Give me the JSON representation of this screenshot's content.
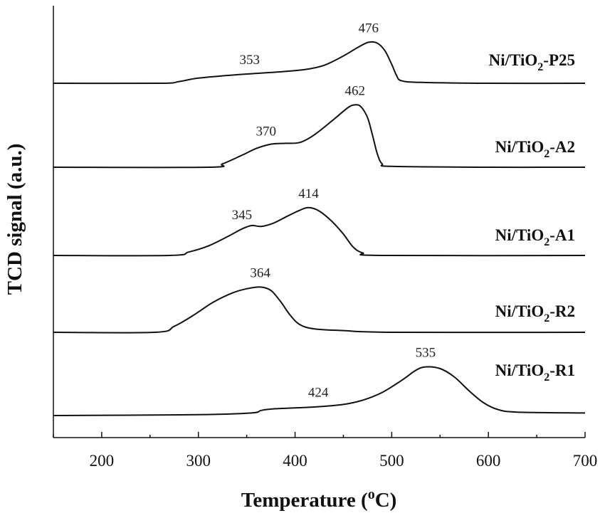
{
  "chart_data": {
    "type": "line",
    "xlabel": "Temperature (",
    "xlabel_sup": "o",
    "xlabel_end": "C)",
    "ylabel": "TCD signal (a.u.)",
    "xlim": [
      150,
      700
    ],
    "x_ticks": [
      200,
      300,
      400,
      500,
      600,
      700
    ],
    "y_ticks_shown": false,
    "series": [
      {
        "name_pre": "Ni/TiO",
        "name_sub": "2",
        "name_post": "-P25",
        "points": [
          [
            150,
            0.0
          ],
          [
            260,
            0.0
          ],
          [
            280,
            0.02
          ],
          [
            300,
            0.06
          ],
          [
            340,
            0.1
          ],
          [
            380,
            0.13
          ],
          [
            410,
            0.16
          ],
          [
            430,
            0.21
          ],
          [
            450,
            0.32
          ],
          [
            465,
            0.42
          ],
          [
            476,
            0.48
          ],
          [
            485,
            0.47
          ],
          [
            493,
            0.38
          ],
          [
            500,
            0.22
          ],
          [
            505,
            0.09
          ],
          [
            510,
            0.03
          ],
          [
            530,
            0.01
          ],
          [
            600,
            0.0
          ],
          [
            700,
            0.0
          ]
        ],
        "peaks": [
          {
            "x": 353,
            "label": "353"
          },
          {
            "x": 476,
            "label": "476"
          }
        ]
      },
      {
        "name_pre": "Ni/TiO",
        "name_sub": "2",
        "name_post": "-A2",
        "points": [
          [
            150,
            0.0
          ],
          [
            310,
            0.0
          ],
          [
            325,
            0.04
          ],
          [
            345,
            0.14
          ],
          [
            360,
            0.22
          ],
          [
            375,
            0.27
          ],
          [
            390,
            0.28
          ],
          [
            405,
            0.29
          ],
          [
            420,
            0.38
          ],
          [
            440,
            0.56
          ],
          [
            455,
            0.7
          ],
          [
            462,
            0.73
          ],
          [
            468,
            0.71
          ],
          [
            475,
            0.58
          ],
          [
            480,
            0.38
          ],
          [
            485,
            0.16
          ],
          [
            490,
            0.04
          ],
          [
            500,
            0.01
          ],
          [
            600,
            0.0
          ],
          [
            700,
            0.0
          ]
        ],
        "peaks": [
          {
            "x": 370,
            "label": "370"
          },
          {
            "x": 462,
            "label": "462"
          }
        ]
      },
      {
        "name_pre": "Ni/TiO",
        "name_sub": "2",
        "name_post": "-A1",
        "points": [
          [
            150,
            0.0
          ],
          [
            270,
            0.0
          ],
          [
            290,
            0.04
          ],
          [
            310,
            0.11
          ],
          [
            330,
            0.22
          ],
          [
            345,
            0.31
          ],
          [
            355,
            0.35
          ],
          [
            365,
            0.34
          ],
          [
            378,
            0.38
          ],
          [
            392,
            0.46
          ],
          [
            405,
            0.53
          ],
          [
            414,
            0.56
          ],
          [
            425,
            0.52
          ],
          [
            438,
            0.4
          ],
          [
            450,
            0.25
          ],
          [
            460,
            0.1
          ],
          [
            470,
            0.03
          ],
          [
            490,
            0.0
          ],
          [
            700,
            0.0
          ]
        ],
        "peaks": [
          {
            "x": 345,
            "label": "345"
          },
          {
            "x": 414,
            "label": "414"
          }
        ]
      },
      {
        "name_pre": "Ni/TiO",
        "name_sub": "2",
        "name_post": "-R2",
        "points": [
          [
            150,
            0.0
          ],
          [
            255,
            0.0
          ],
          [
            275,
            0.07
          ],
          [
            295,
            0.2
          ],
          [
            315,
            0.35
          ],
          [
            335,
            0.46
          ],
          [
            350,
            0.51
          ],
          [
            364,
            0.53
          ],
          [
            375,
            0.49
          ],
          [
            385,
            0.36
          ],
          [
            395,
            0.2
          ],
          [
            405,
            0.09
          ],
          [
            420,
            0.04
          ],
          [
            450,
            0.02
          ],
          [
            500,
            0.0
          ],
          [
            700,
            0.0
          ]
        ],
        "peaks": [
          {
            "x": 364,
            "label": "364"
          }
        ]
      },
      {
        "name_pre": "Ni/TiO",
        "name_sub": "2",
        "name_post": "-R1",
        "points": [
          [
            150,
            0.0
          ],
          [
            300,
            0.01
          ],
          [
            355,
            0.03
          ],
          [
            365,
            0.06
          ],
          [
            380,
            0.08
          ],
          [
            420,
            0.1
          ],
          [
            450,
            0.13
          ],
          [
            470,
            0.18
          ],
          [
            490,
            0.27
          ],
          [
            510,
            0.41
          ],
          [
            525,
            0.53
          ],
          [
            535,
            0.57
          ],
          [
            550,
            0.55
          ],
          [
            565,
            0.45
          ],
          [
            580,
            0.29
          ],
          [
            595,
            0.15
          ],
          [
            610,
            0.07
          ],
          [
            630,
            0.04
          ],
          [
            700,
            0.03
          ]
        ],
        "peaks": [
          {
            "x": 424,
            "label": "424"
          },
          {
            "x": 535,
            "label": "535"
          }
        ]
      }
    ]
  }
}
